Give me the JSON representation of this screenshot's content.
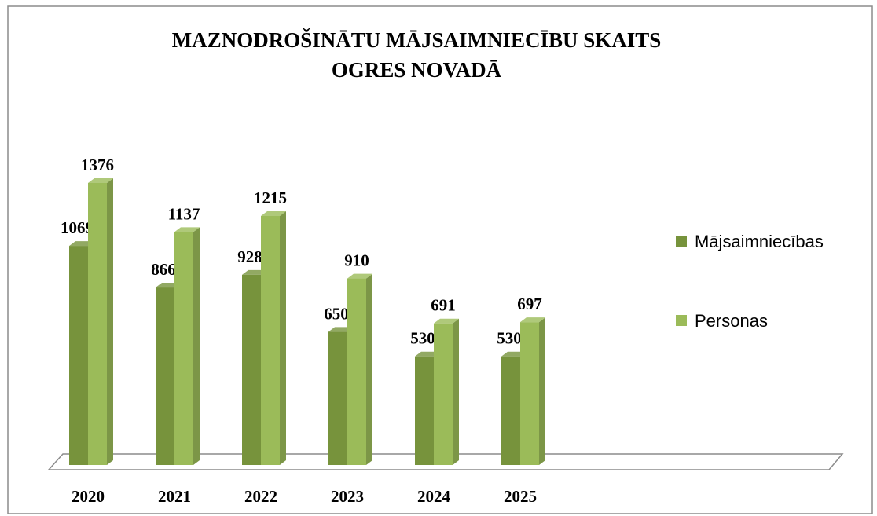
{
  "chart_data": {
    "type": "bar3d",
    "title": [
      "MAZNODROŠINĀTU MĀJSAIMNIECĪBU SKAITS",
      "OGRES NOVADĀ"
    ],
    "categories": [
      "2020",
      "2021",
      "2022",
      "2023",
      "2024",
      "2025"
    ],
    "series": [
      {
        "name": "Mājsaimniecības",
        "color": "#77933c",
        "values": [
          1069,
          866,
          928,
          650,
          530,
          530
        ]
      },
      {
        "name": "Personas",
        "color": "#9bbb59",
        "values": [
          1376,
          1137,
          1215,
          910,
          691,
          697
        ]
      }
    ],
    "legend": "right"
  }
}
